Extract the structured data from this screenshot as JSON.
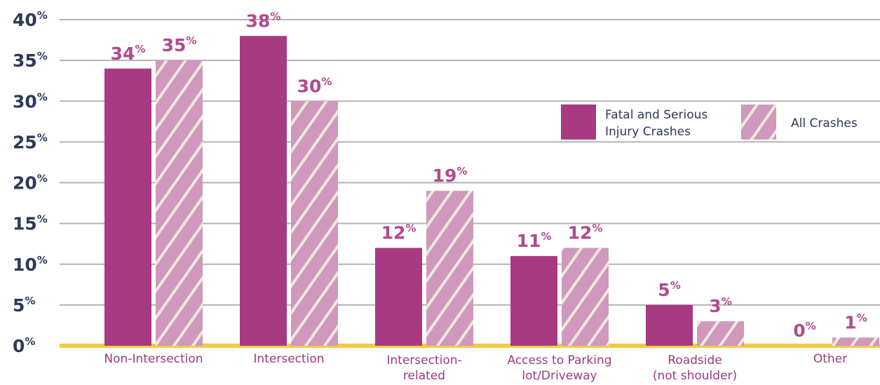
{
  "chart_data": {
    "type": "bar",
    "categories": [
      "Non-Intersection",
      "Intersection",
      "Intersection-\nrelated",
      "Access to Parking\nlot/Driveway",
      "Roadside\n(not shoulder)",
      "Other"
    ],
    "series": [
      {
        "name": "Fatal and Serious\nInjury Crashes",
        "color": "#a83a82",
        "values": [
          34,
          38,
          12,
          11,
          5,
          0
        ],
        "value_labels": [
          "34%",
          "38%",
          "12%",
          "11%",
          "5%",
          "0%"
        ]
      },
      {
        "name": "All Crashes",
        "color": "#cf98bc",
        "hatch": true,
        "values": [
          35,
          30,
          19,
          12,
          3,
          1
        ],
        "value_labels": [
          "35%",
          "30%",
          "19%",
          "12%",
          "3%",
          "1%"
        ]
      }
    ],
    "ylim": [
      0,
      40
    ],
    "yticks": [
      {
        "value": 0,
        "label": "0%"
      },
      {
        "value": 5,
        "label": "5%"
      },
      {
        "value": 10,
        "label": "10%"
      },
      {
        "value": 15,
        "label": "15%"
      },
      {
        "value": 20,
        "label": "20%"
      },
      {
        "value": 25,
        "label": "25%"
      },
      {
        "value": 30,
        "label": "30%"
      },
      {
        "value": 35,
        "label": "35%"
      },
      {
        "value": 40,
        "label": "40%"
      }
    ],
    "grid": true,
    "legend": "upper right"
  }
}
